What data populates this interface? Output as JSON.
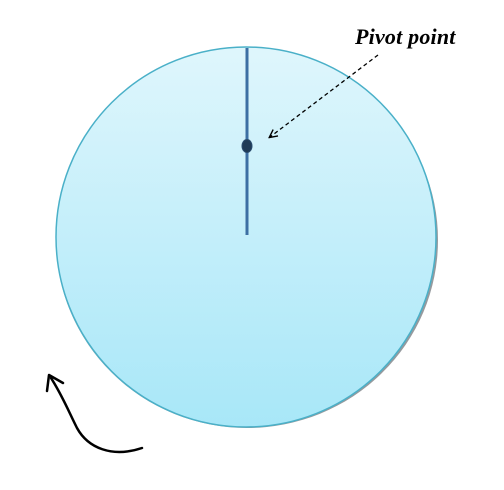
{
  "labels": {
    "pivot": "Pivot point"
  },
  "colors": {
    "disk_top": "#dff6fc",
    "disk_bottom": "#a8e7f8",
    "disk_outline": "#4ab0c8",
    "disk_shadow": "#8a8f93",
    "rod": "#3d6fa3",
    "pivot_dot": "#1f3b56",
    "annotation_arrow": "#000000",
    "rotation_arrow": "#000000"
  },
  "icons": {
    "rotation": "curved-arrow-counterclockwise-icon",
    "pointer": "dashed-arrow-icon"
  }
}
